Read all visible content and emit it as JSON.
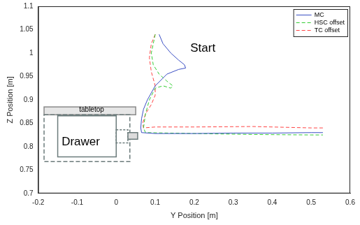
{
  "chart_data": {
    "type": "scatter",
    "x_label": "Y Position [m]",
    "y_label": "Z Position [m]",
    "xlim": [
      -0.2,
      0.6
    ],
    "xticks": [
      -0.2,
      -0.1,
      0,
      0.1,
      0.2,
      0.3,
      0.4,
      0.5,
      0.6
    ],
    "ylim": [
      0.7,
      1.1
    ],
    "yticks": [
      0.7,
      0.75,
      0.8,
      0.85,
      0.9,
      0.95,
      1,
      1.05,
      1.1
    ],
    "grid": false,
    "legend": "top-right",
    "annotations": [
      {
        "text": "Start",
        "x": 0.19,
        "y": 1.01
      },
      {
        "text": "tabletop",
        "x": -0.095,
        "y": 0.878
      },
      {
        "text": "Drawer",
        "x": -0.14,
        "y": 0.81
      }
    ],
    "series": [
      {
        "name": "MC",
        "color": "#3b4fc4",
        "line_style": "solid",
        "x": [
          0.11,
          0.12,
          0.14,
          0.16,
          0.175,
          0.178,
          0.16,
          0.13,
          0.1,
          0.08,
          0.07,
          0.065,
          0.063,
          0.065,
          0.1,
          0.2,
          0.3,
          0.4,
          0.5,
          0.53
        ],
        "values": [
          1.04,
          1.02,
          1.0,
          0.985,
          0.975,
          0.968,
          0.965,
          0.955,
          0.93,
          0.9,
          0.88,
          0.86,
          0.84,
          0.83,
          0.828,
          0.828,
          0.829,
          0.829,
          0.83,
          0.83
        ]
      },
      {
        "name": "HSC offset",
        "color": "#33cc33",
        "line_style": "dashed",
        "x": [
          0.1,
          0.095,
          0.09,
          0.095,
          0.11,
          0.13,
          0.145,
          0.14,
          0.12,
          0.1,
          0.085,
          0.075,
          0.07,
          0.075,
          0.2,
          0.35,
          0.5,
          0.53
        ],
        "values": [
          1.04,
          1.02,
          1.0,
          0.975,
          0.955,
          0.94,
          0.93,
          0.925,
          0.93,
          0.925,
          0.9,
          0.87,
          0.84,
          0.83,
          0.828,
          0.826,
          0.825,
          0.825
        ]
      },
      {
        "name": "TC offset",
        "color": "#ff4444",
        "line_style": "dashed",
        "x": [
          0.1,
          0.09,
          0.085,
          0.09,
          0.1,
          0.1,
          0.09,
          0.075,
          0.068,
          0.07,
          0.1,
          0.2,
          0.35,
          0.5,
          0.53
        ],
        "values": [
          1.04,
          1.02,
          0.99,
          0.96,
          0.93,
          0.91,
          0.89,
          0.87,
          0.85,
          0.84,
          0.842,
          0.842,
          0.843,
          0.84,
          0.84
        ]
      }
    ]
  }
}
